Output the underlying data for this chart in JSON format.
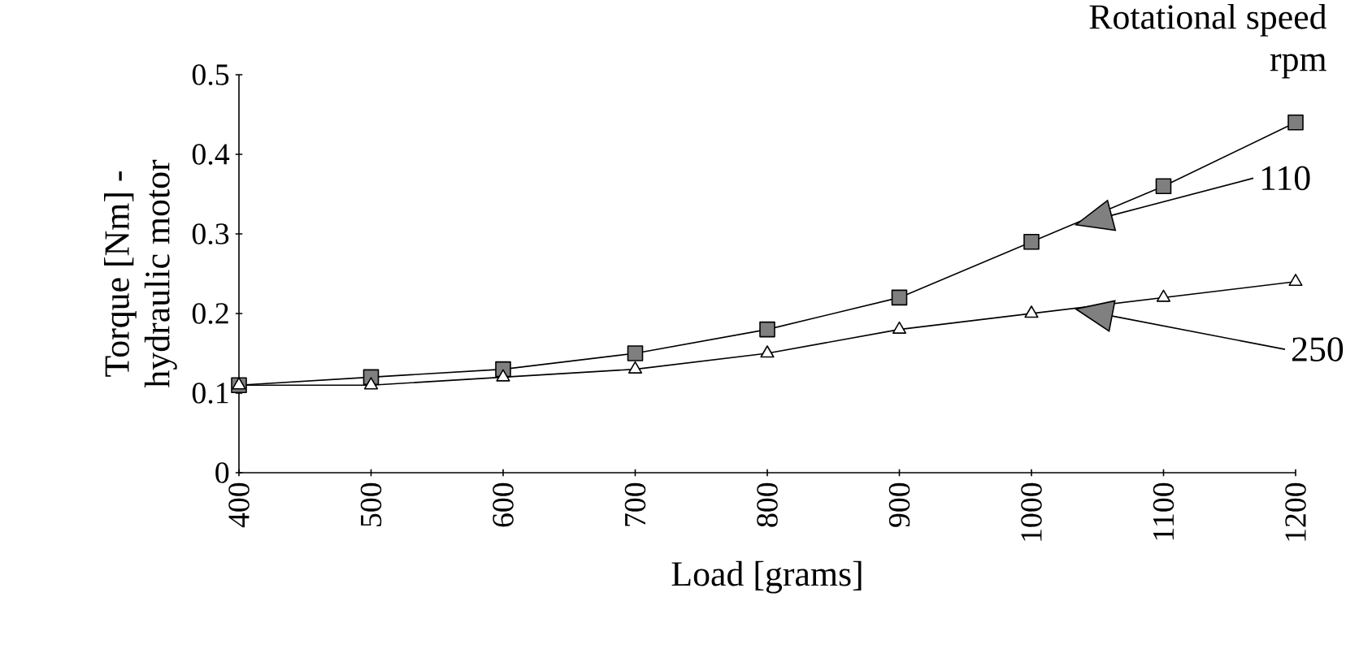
{
  "chart_data": {
    "type": "line",
    "xlabel": "Load [grams]",
    "ylabel": "Torque [Nm] -\nhydraulic motor",
    "legend_title": "Rotational speed\nrpm",
    "x": [
      400,
      500,
      600,
      700,
      800,
      900,
      1000,
      1100,
      1200
    ],
    "series": [
      {
        "name": "110",
        "color": "#7f7f7f",
        "marker": "square",
        "values": [
          0.11,
          0.12,
          0.13,
          0.15,
          0.18,
          0.22,
          0.29,
          0.36,
          0.44
        ]
      },
      {
        "name": "250",
        "color": "#ffffff",
        "marker": "triangle",
        "values": [
          0.11,
          0.11,
          0.12,
          0.13,
          0.15,
          0.18,
          0.2,
          0.22,
          0.24
        ]
      }
    ],
    "xlim": [
      400,
      1200
    ],
    "xticks": [
      400,
      500,
      600,
      700,
      800,
      900,
      1000,
      1100,
      1200
    ],
    "ylim": [
      0,
      0.5
    ],
    "yticks": [
      0,
      0.1,
      0.2,
      0.3,
      0.4,
      0.5
    ],
    "grid": false,
    "legend": "right"
  }
}
